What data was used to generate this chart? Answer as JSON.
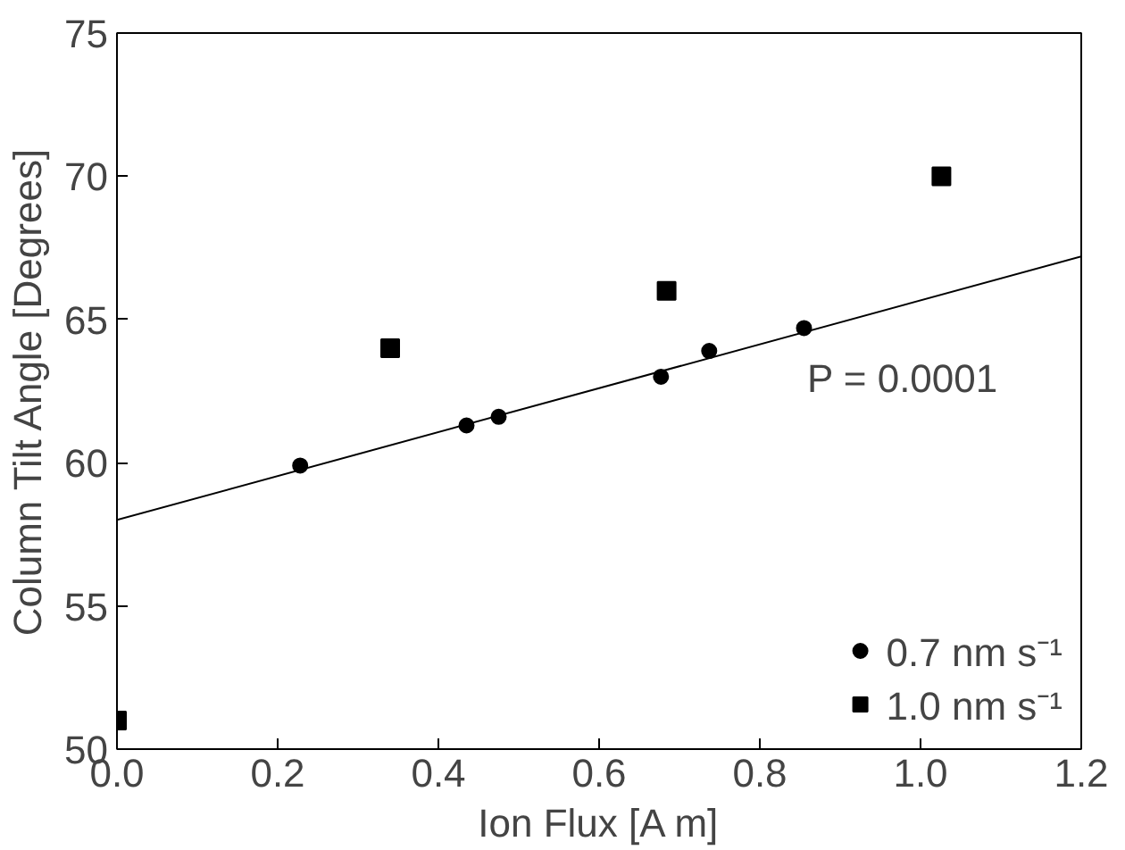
{
  "chart_data": {
    "type": "scatter",
    "xlabel": "Ion Flux [A m]",
    "ylabel": "Column Tilt Angle [Degrees]",
    "xlim": [
      0,
      1.2
    ],
    "ylim": [
      50,
      75
    ],
    "xticks": [
      {
        "value": 0,
        "label": "0.0"
      },
      0.2,
      0.4,
      0.6,
      0.8,
      {
        "value": 1,
        "label": "1.0"
      },
      1.2
    ],
    "yticks": [
      50,
      55,
      60,
      65,
      70,
      75
    ],
    "grid": false,
    "legend": "bottom right",
    "annotations": [
      "P = 0.0001"
    ],
    "series": [
      {
        "name": "0.7 nm s⁻¹",
        "color": "#000000",
        "marker": "circle",
        "x": [
          0.228,
          0.435,
          0.475,
          0.677,
          0.737,
          0.855
        ],
        "values": [
          59.9,
          61.3,
          61.6,
          63.0,
          63.9,
          64.7
        ]
      },
      {
        "name": "1.0 nm s⁻¹",
        "color": "#000000",
        "marker": "square",
        "x": [
          0.0,
          0.34,
          0.684,
          1.026
        ],
        "values": [
          51.0,
          64.0,
          66.0,
          70.0
        ]
      },
      {
        "type": "line",
        "color": "#000000",
        "line_style": "solid",
        "marker": "none",
        "x": [
          0,
          1.2
        ],
        "values": [
          58.0,
          67.2
        ]
      }
    ]
  }
}
